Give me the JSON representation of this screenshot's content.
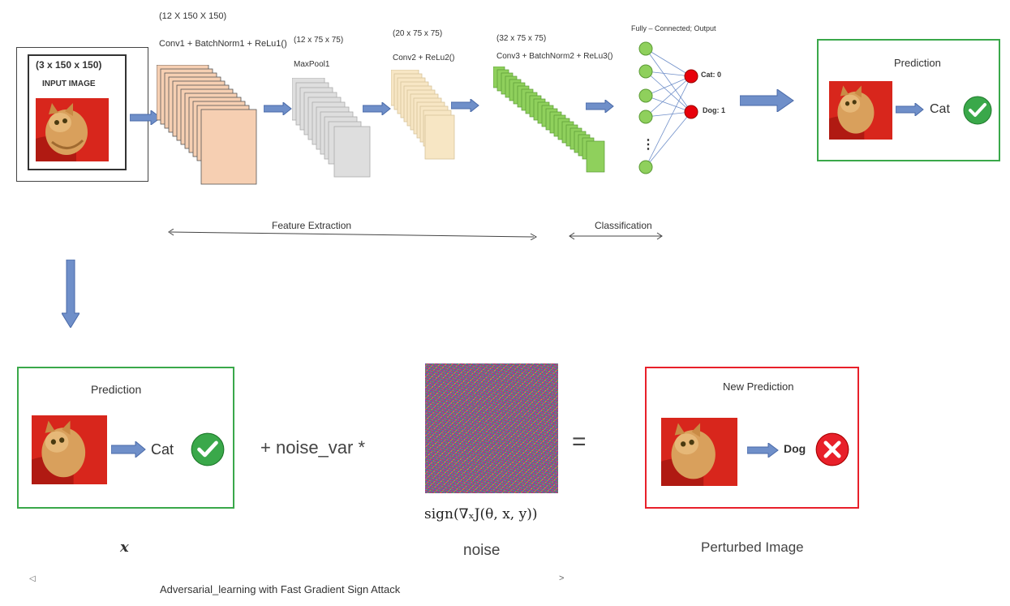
{
  "top": {
    "input": {
      "dims": "(3 x 150 x 150)",
      "label": "INPUT IMAGE"
    },
    "conv1": {
      "dims": "(12 X 150 X 150)",
      "label": "Conv1 + BatchNorm1 + ReLu1()"
    },
    "pool": {
      "dims": "(12 x 75 x 75)",
      "label": "MaxPool1"
    },
    "conv2": {
      "dims": "(20 x 75 x 75)",
      "label": "Conv2 + ReLu2()"
    },
    "conv3": {
      "dims": "(32 x 75 x 75)",
      "label": "Conv3 + BatchNorm2 + ReLu3()"
    },
    "fc": {
      "title": "Fully – Connected; Output",
      "ellipsis": "⋮",
      "out_cat": "Cat:  0",
      "out_dog": "Dog:  1"
    },
    "prediction": {
      "title": "Prediction",
      "result": "Cat",
      "check_icon": "check-circle-icon"
    },
    "feature_extraction": "Feature Extraction",
    "classification": "Classification"
  },
  "bottom": {
    "clean": {
      "title": "Prediction",
      "result": "Cat",
      "caption": "x"
    },
    "operator_plus": "+  noise_var  *",
    "noise": {
      "formula": "sign(∇ₓJ(θ, x, y))",
      "caption": "noise"
    },
    "equals": "=",
    "perturbed": {
      "title": "New Prediction",
      "result": "Dog",
      "cross_icon": "cross-circle-icon",
      "caption": "Perturbed Image"
    },
    "footer": "Adversarial_learning with Fast Gradient Sign Attack",
    "footer_left": "◁",
    "footer_right": ">"
  },
  "colors": {
    "conv1_fill": "#f6cfb2",
    "pool_fill": "#dedede",
    "conv2_fill": "#f7e6c4",
    "conv3_fill": "#8fd05c",
    "node_green": "#8fd05c",
    "node_red": "#e8000b",
    "arrow_blue": "#6f8fc9",
    "green_frame": "#3aa84a",
    "red_frame": "#e8202a"
  }
}
